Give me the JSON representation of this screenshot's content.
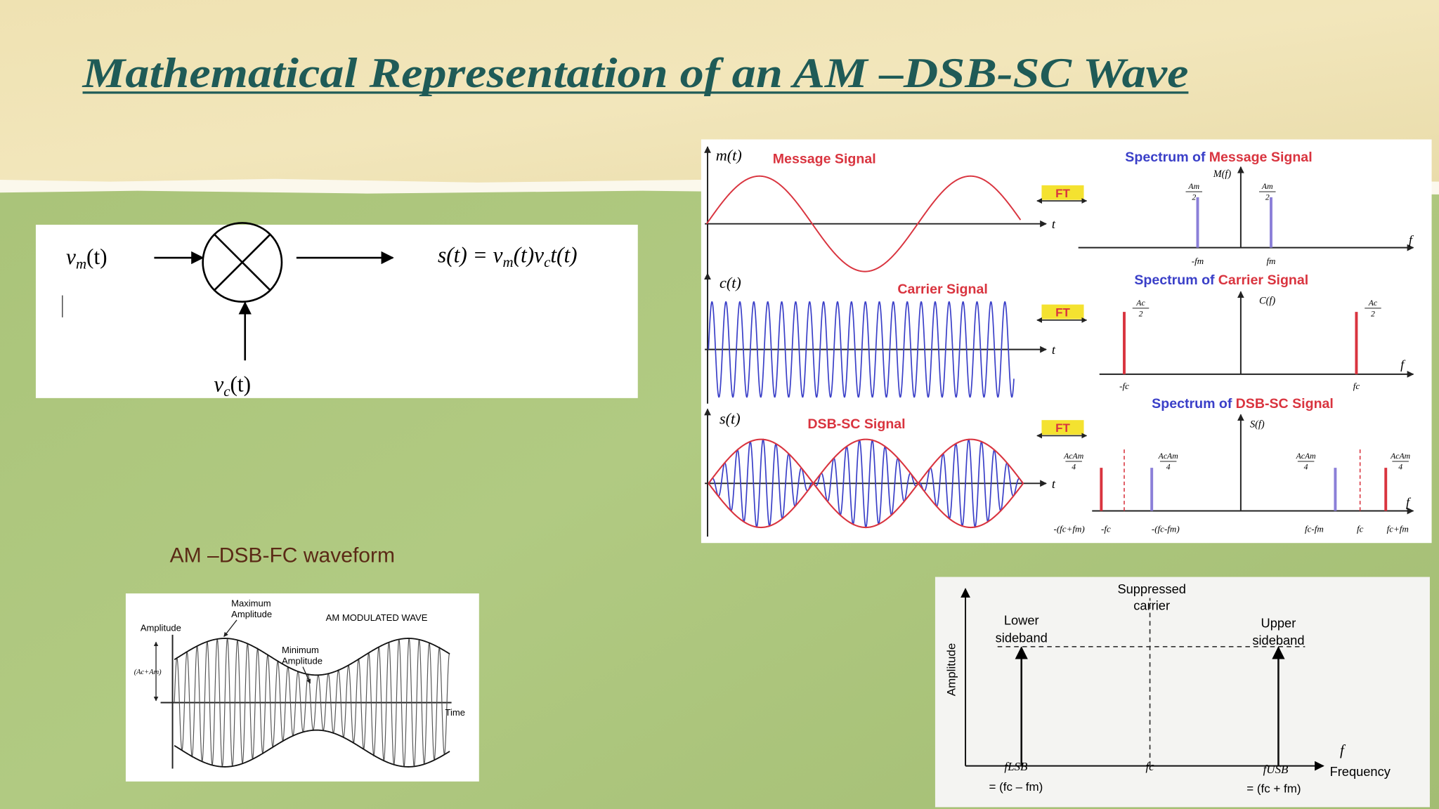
{
  "title": "Mathematical Representation of an AM –DSB-SC Wave",
  "block_diagram": {
    "input": {
      "base": "v",
      "sub": "m",
      "tail": "(t)"
    },
    "carrier": {
      "base": "v",
      "sub": "c",
      "tail": "(t)"
    },
    "output": [
      "s(t) = v",
      "m",
      "(t)v",
      "c",
      "t(t)"
    ]
  },
  "dsb_sc_figure": {
    "message_label": "m(t)",
    "message_title": "Message Signal",
    "carrier_label": "c(t)",
    "carrier_title": "Carrier Signal",
    "dsb_label": "s(t)",
    "dsb_title": "DSB-SC Signal",
    "transform": [
      "FT",
      "FT",
      "FT"
    ],
    "time_axis": "t",
    "freq_axis": "f",
    "spectrum_prefix": "Spectrum of",
    "message_spectrum": {
      "label": "M(f)",
      "amplitude": {
        "num": "Am",
        "den": "2"
      },
      "ticks": [
        "-fm",
        "fm"
      ]
    },
    "carrier_spectrum": {
      "label": "C(f)",
      "amplitude": {
        "num": "Ac",
        "den": "2"
      },
      "ticks": [
        "-fc",
        "fc"
      ]
    },
    "dsb_spectrum": {
      "label": "S(f)",
      "amplitude": {
        "num": "AcAm",
        "den": "4"
      },
      "ticks": [
        "-(fc+fm)",
        "-fc",
        "-(fc-fm)",
        "fc-fm",
        "fc",
        "fc+fm"
      ]
    }
  },
  "waveform_caption": "AM –DSB-FC waveform",
  "am_wave": {
    "title": "AM MODULATED WAVE",
    "y_label": "Amplitude",
    "max_label": [
      "Maximum",
      "Amplitude"
    ],
    "min_label": [
      "Minimum",
      "Amplitude"
    ],
    "amplitude_marker": "(Ac+Am)",
    "x_label": "Time"
  },
  "spectrum": {
    "y_label": "Amplitude",
    "x_label": "Frequency",
    "carrier_label": [
      "Suppressed",
      "carrier"
    ],
    "lower_label": [
      "Lower",
      "sideband"
    ],
    "upper_label": [
      "Upper",
      "sideband"
    ],
    "f_symbol": "f",
    "lower_freq": "fLSB",
    "lower_expr": "= (fc – fm)",
    "carrier_freq": "fc",
    "upper_freq": "fUSB",
    "upper_expr": "= (fc + fm)"
  }
}
